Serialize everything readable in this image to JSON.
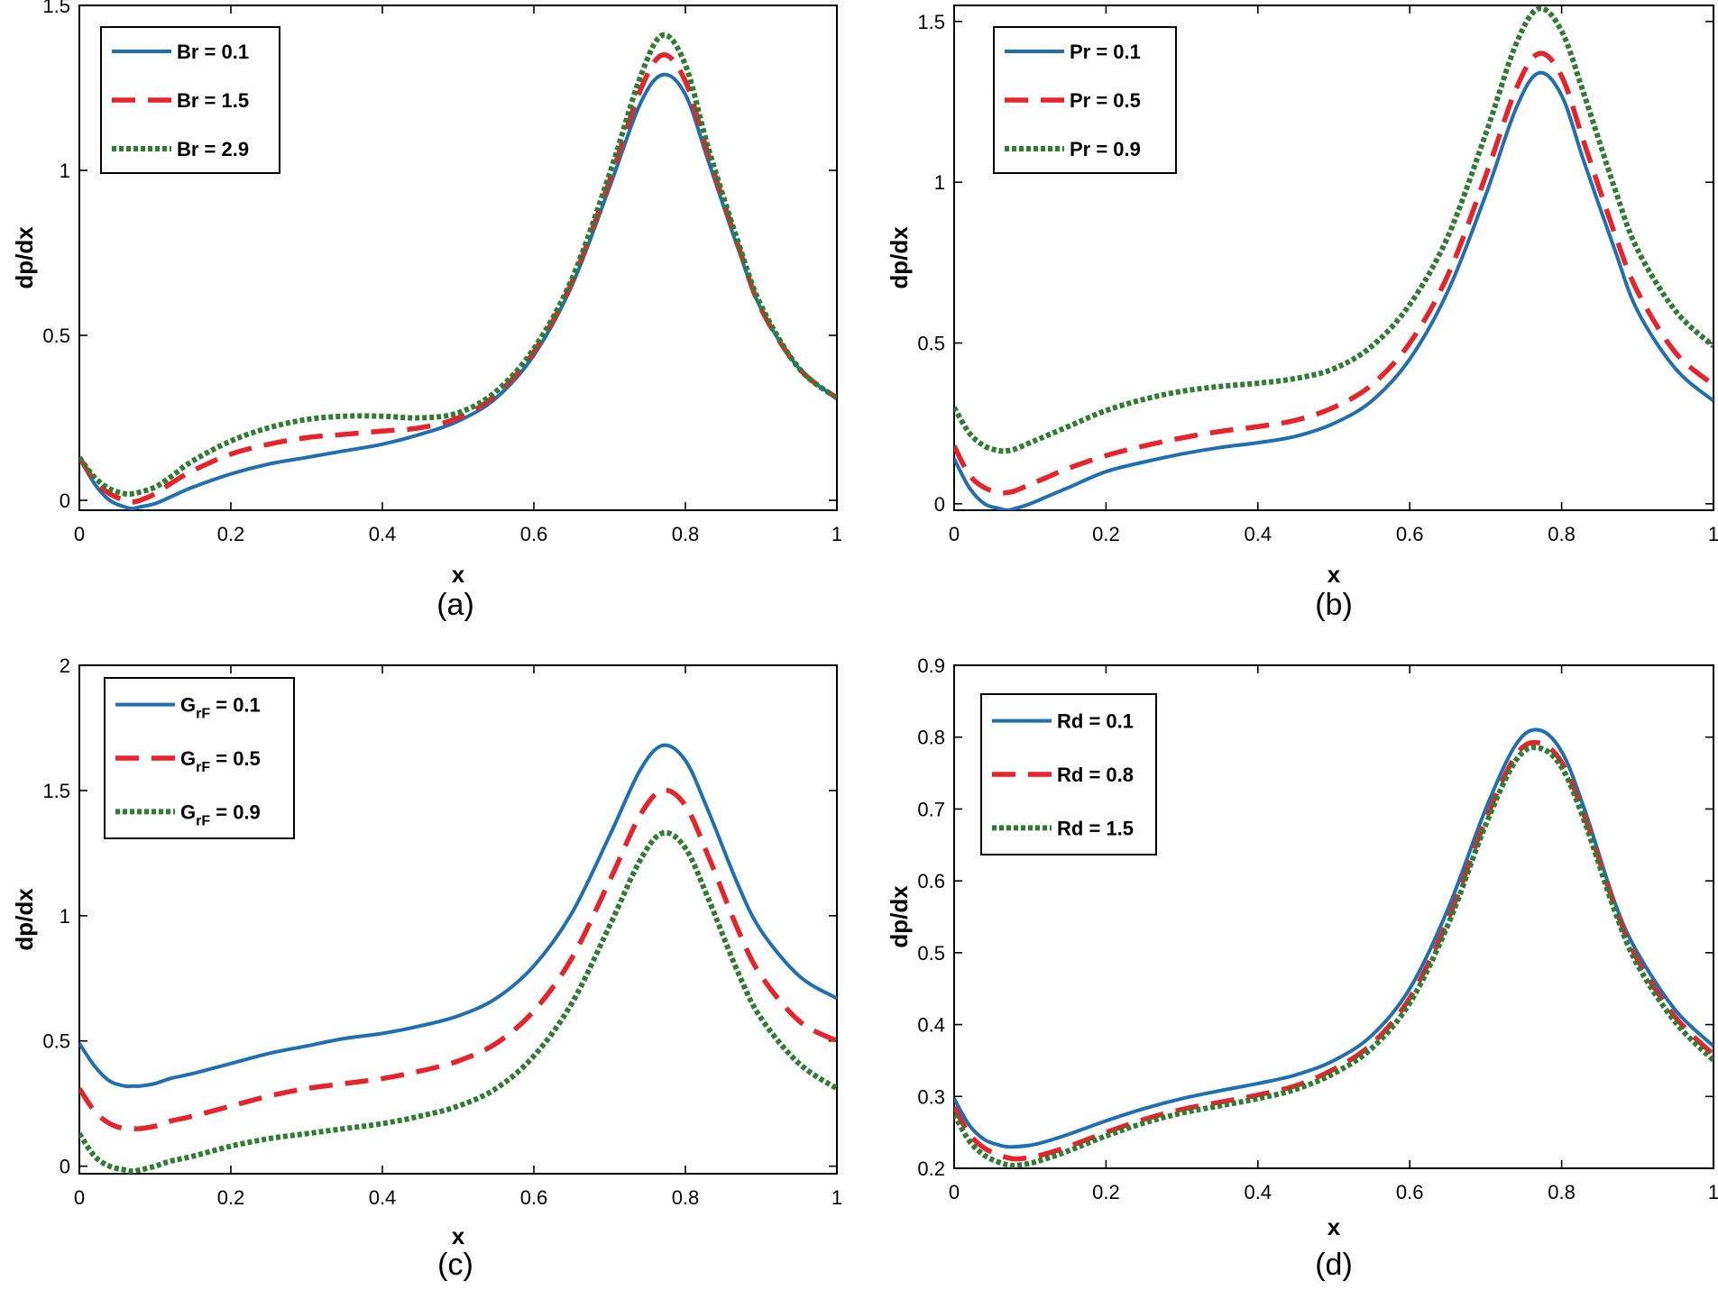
{
  "chart_data": [
    {
      "type": "line",
      "caption": "(a)",
      "xlabel": "x",
      "ylabel": "dp/dx",
      "xlim": [
        0,
        1
      ],
      "ylim": [
        -0.03,
        1.5
      ],
      "xticks": [
        0,
        0.2,
        0.4,
        0.6,
        0.8,
        1
      ],
      "xtick_labels": [
        "0",
        "0.2",
        "0.4",
        "0.6",
        "0.8",
        "1"
      ],
      "yticks": [
        0,
        0.5,
        1,
        1.5
      ],
      "ytick_labels": [
        "0",
        "0.5",
        "1",
        "1.5"
      ],
      "legend_position": "top-left",
      "x": [
        0,
        0.02,
        0.04,
        0.06,
        0.07,
        0.08,
        0.1,
        0.12,
        0.15,
        0.2,
        0.25,
        0.3,
        0.35,
        0.4,
        0.45,
        0.5,
        0.55,
        0.6,
        0.65,
        0.7,
        0.74,
        0.77,
        0.8,
        0.83,
        0.87,
        0.9,
        0.95,
        1
      ],
      "series": [
        {
          "name": "Br = 0.1",
          "label_parts": [
            {
              "text": "Br = 0.1",
              "sub": false
            }
          ],
          "color": "#1f6fb5",
          "style": "solid",
          "values": [
            0.13,
            0.05,
            0.0,
            -0.02,
            -0.025,
            -0.02,
            -0.01,
            0.01,
            0.04,
            0.08,
            0.11,
            0.13,
            0.15,
            0.17,
            0.2,
            0.24,
            0.31,
            0.44,
            0.65,
            0.95,
            1.2,
            1.29,
            1.23,
            1.03,
            0.76,
            0.58,
            0.4,
            0.31
          ]
        },
        {
          "name": "Br = 1.5",
          "label_parts": [
            {
              "text": "Br = 1.5",
              "sub": false
            }
          ],
          "color": "#e8232a",
          "style": "dashed",
          "values": [
            0.13,
            0.06,
            0.02,
            0.0,
            -0.005,
            0.0,
            0.02,
            0.05,
            0.09,
            0.14,
            0.17,
            0.19,
            0.2,
            0.21,
            0.22,
            0.25,
            0.32,
            0.45,
            0.66,
            0.97,
            1.24,
            1.35,
            1.27,
            1.05,
            0.77,
            0.58,
            0.4,
            0.31
          ]
        },
        {
          "name": "Br = 2.9",
          "label_parts": [
            {
              "text": "Br = 2.9",
              "sub": false
            }
          ],
          "color": "#2e7d32",
          "style": "dotted",
          "values": [
            0.13,
            0.07,
            0.035,
            0.02,
            0.02,
            0.025,
            0.04,
            0.07,
            0.12,
            0.18,
            0.22,
            0.245,
            0.255,
            0.255,
            0.25,
            0.265,
            0.33,
            0.46,
            0.67,
            0.99,
            1.28,
            1.41,
            1.32,
            1.07,
            0.78,
            0.59,
            0.4,
            0.31
          ]
        }
      ]
    },
    {
      "type": "line",
      "caption": "(b)",
      "xlabel": "x",
      "ylabel": "dp/dx",
      "xlim": [
        0,
        1
      ],
      "ylim": [
        -0.02,
        1.55
      ],
      "xticks": [
        0,
        0.2,
        0.4,
        0.6,
        0.8,
        1
      ],
      "xtick_labels": [
        "0",
        "0.2",
        "0.4",
        "0.6",
        "0.8",
        "1"
      ],
      "yticks": [
        0,
        0.5,
        1,
        1.5
      ],
      "ytick_labels": [
        "0",
        "0.5",
        "1",
        "1.5"
      ],
      "legend_position": "top-left",
      "x": [
        0,
        0.02,
        0.04,
        0.06,
        0.07,
        0.08,
        0.1,
        0.12,
        0.15,
        0.2,
        0.25,
        0.3,
        0.35,
        0.4,
        0.45,
        0.5,
        0.55,
        0.6,
        0.65,
        0.7,
        0.74,
        0.77,
        0.8,
        0.83,
        0.87,
        0.9,
        0.95,
        1
      ],
      "series": [
        {
          "name": "Pr = 0.1",
          "label_parts": [
            {
              "text": "Pr = 0.1",
              "sub": false
            }
          ],
          "color": "#1f6fb5",
          "style": "solid",
          "values": [
            0.14,
            0.05,
            0.0,
            -0.015,
            -0.02,
            -0.015,
            0.0,
            0.02,
            0.05,
            0.1,
            0.13,
            0.155,
            0.175,
            0.19,
            0.21,
            0.25,
            0.32,
            0.45,
            0.66,
            0.96,
            1.23,
            1.34,
            1.27,
            1.06,
            0.79,
            0.6,
            0.42,
            0.32
          ]
        },
        {
          "name": "Pr = 0.5",
          "label_parts": [
            {
              "text": "Pr = 0.5",
              "sub": false
            }
          ],
          "color": "#e8232a",
          "style": "dashed",
          "values": [
            0.18,
            0.09,
            0.05,
            0.035,
            0.035,
            0.04,
            0.06,
            0.08,
            0.11,
            0.15,
            0.18,
            0.205,
            0.225,
            0.24,
            0.26,
            0.3,
            0.37,
            0.5,
            0.71,
            1.02,
            1.29,
            1.4,
            1.33,
            1.12,
            0.84,
            0.66,
            0.47,
            0.37
          ]
        },
        {
          "name": "Pr = 0.9",
          "label_parts": [
            {
              "text": "Pr = 0.9",
              "sub": false
            }
          ],
          "color": "#2e7d32",
          "style": "dotted",
          "values": [
            0.3,
            0.22,
            0.18,
            0.165,
            0.165,
            0.17,
            0.19,
            0.21,
            0.24,
            0.29,
            0.325,
            0.35,
            0.365,
            0.375,
            0.39,
            0.42,
            0.49,
            0.62,
            0.83,
            1.15,
            1.43,
            1.54,
            1.47,
            1.27,
            0.98,
            0.79,
            0.6,
            0.49
          ]
        }
      ]
    },
    {
      "type": "line",
      "caption": "(c)",
      "xlabel": "x",
      "ylabel": "dp/dx",
      "xlim": [
        0,
        1
      ],
      "ylim": [
        -0.03,
        2
      ],
      "xticks": [
        0,
        0.2,
        0.4,
        0.6,
        0.8,
        1
      ],
      "xtick_labels": [
        "0",
        "0.2",
        "0.4",
        "0.6",
        "0.8",
        "1"
      ],
      "yticks": [
        0,
        0.5,
        1,
        1.5,
        2
      ],
      "ytick_labels": [
        "0",
        "0.5",
        "1",
        "1.5",
        "2"
      ],
      "legend_position": "top-left",
      "x": [
        0,
        0.02,
        0.04,
        0.06,
        0.07,
        0.08,
        0.1,
        0.12,
        0.15,
        0.2,
        0.25,
        0.3,
        0.35,
        0.4,
        0.45,
        0.5,
        0.55,
        0.6,
        0.65,
        0.7,
        0.74,
        0.77,
        0.8,
        0.83,
        0.87,
        0.9,
        0.95,
        1
      ],
      "series": [
        {
          "name": "GrF = 0.1",
          "label_parts": [
            {
              "text": "G",
              "sub": false
            },
            {
              "text": "rF",
              "sub": true
            },
            {
              "text": " = 0.1",
              "sub": false
            }
          ],
          "color": "#1f6fb5",
          "style": "solid",
          "values": [
            0.49,
            0.4,
            0.34,
            0.32,
            0.32,
            0.32,
            0.33,
            0.35,
            0.37,
            0.41,
            0.45,
            0.48,
            0.51,
            0.53,
            0.56,
            0.6,
            0.67,
            0.8,
            1.01,
            1.32,
            1.58,
            1.68,
            1.62,
            1.42,
            1.12,
            0.94,
            0.76,
            0.67
          ]
        },
        {
          "name": "GrF = 0.5",
          "label_parts": [
            {
              "text": "G",
              "sub": false
            },
            {
              "text": "rF",
              "sub": true
            },
            {
              "text": " = 0.5",
              "sub": false
            }
          ],
          "color": "#e8232a",
          "style": "dashed",
          "values": [
            0.31,
            0.22,
            0.17,
            0.15,
            0.15,
            0.15,
            0.16,
            0.18,
            0.2,
            0.24,
            0.28,
            0.31,
            0.33,
            0.35,
            0.38,
            0.42,
            0.49,
            0.62,
            0.83,
            1.14,
            1.4,
            1.5,
            1.44,
            1.24,
            0.94,
            0.76,
            0.58,
            0.5
          ]
        },
        {
          "name": "GrF = 0.9",
          "label_parts": [
            {
              "text": "G",
              "sub": false
            },
            {
              "text": "rF",
              "sub": true
            },
            {
              "text": " = 0.9",
              "sub": false
            }
          ],
          "color": "#2e7d32",
          "style": "dotted",
          "values": [
            0.13,
            0.04,
            0.0,
            -0.015,
            -0.02,
            -0.015,
            0.0,
            0.02,
            0.04,
            0.08,
            0.11,
            0.13,
            0.15,
            0.17,
            0.2,
            0.24,
            0.31,
            0.44,
            0.65,
            0.96,
            1.22,
            1.33,
            1.27,
            1.07,
            0.77,
            0.59,
            0.41,
            0.31
          ]
        }
      ]
    },
    {
      "type": "line",
      "caption": "(d)",
      "xlabel": "x",
      "ylabel": "dp/dx",
      "xlim": [
        0,
        1
      ],
      "ylim": [
        0.2,
        0.9
      ],
      "xticks": [
        0,
        0.2,
        0.4,
        0.6,
        0.8,
        1
      ],
      "xtick_labels": [
        "0",
        "0.2",
        "0.4",
        "0.6",
        "0.8",
        "1"
      ],
      "yticks": [
        0.2,
        0.3,
        0.4,
        0.5,
        0.6,
        0.7,
        0.8,
        0.9
      ],
      "ytick_labels": [
        "0.2",
        "0.3",
        "0.4",
        "0.5",
        "0.6",
        "0.7",
        "0.8",
        "0.9"
      ],
      "legend_position": "top-left",
      "x": [
        0,
        0.02,
        0.04,
        0.06,
        0.07,
        0.08,
        0.1,
        0.12,
        0.15,
        0.2,
        0.25,
        0.3,
        0.35,
        0.4,
        0.45,
        0.5,
        0.55,
        0.6,
        0.65,
        0.7,
        0.74,
        0.77,
        0.8,
        0.83,
        0.87,
        0.9,
        0.95,
        1
      ],
      "series": [
        {
          "name": "Rd = 0.1",
          "label_parts": [
            {
              "text": "Rd = 0.1",
              "sub": false
            }
          ],
          "color": "#1f6fb5",
          "style": "solid",
          "values": [
            0.297,
            0.26,
            0.24,
            0.232,
            0.23,
            0.23,
            0.232,
            0.237,
            0.247,
            0.266,
            0.283,
            0.297,
            0.308,
            0.318,
            0.33,
            0.35,
            0.385,
            0.45,
            0.56,
            0.7,
            0.79,
            0.81,
            0.78,
            0.7,
            0.57,
            0.5,
            0.42,
            0.37
          ]
        },
        {
          "name": "Rd = 0.8",
          "label_parts": [
            {
              "text": "Rd = 0.8",
              "sub": false
            }
          ],
          "color": "#e8232a",
          "style": "dashed",
          "values": [
            0.285,
            0.248,
            0.228,
            0.218,
            0.215,
            0.213,
            0.215,
            0.22,
            0.23,
            0.25,
            0.268,
            0.282,
            0.292,
            0.302,
            0.315,
            0.338,
            0.373,
            0.437,
            0.545,
            0.685,
            0.775,
            0.792,
            0.765,
            0.69,
            0.565,
            0.49,
            0.41,
            0.358
          ]
        },
        {
          "name": "Rd = 1.5",
          "label_parts": [
            {
              "text": "Rd = 1.5",
              "sub": false
            }
          ],
          "color": "#2e7d32",
          "style": "dotted",
          "values": [
            0.275,
            0.238,
            0.218,
            0.208,
            0.205,
            0.204,
            0.207,
            0.213,
            0.224,
            0.245,
            0.263,
            0.277,
            0.287,
            0.297,
            0.31,
            0.332,
            0.367,
            0.43,
            0.538,
            0.678,
            0.768,
            0.785,
            0.758,
            0.683,
            0.558,
            0.483,
            0.403,
            0.35
          ]
        }
      ]
    }
  ]
}
